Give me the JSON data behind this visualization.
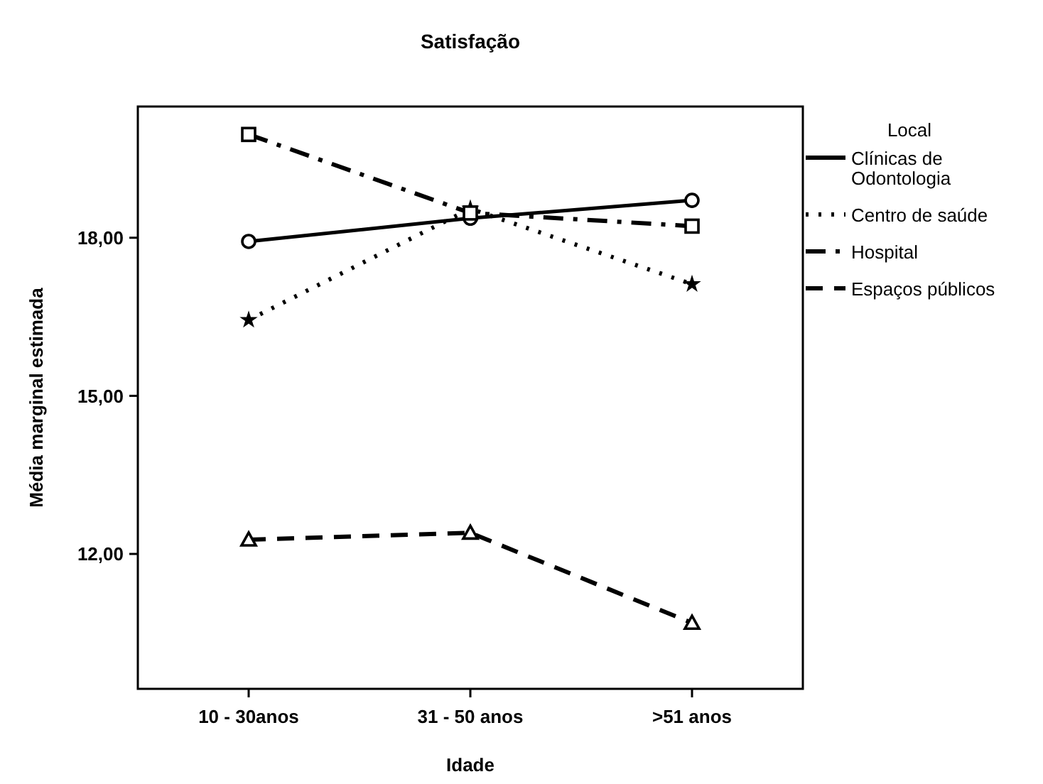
{
  "chart_data": {
    "type": "line",
    "title": "Satisfação",
    "xlabel": "Idade",
    "ylabel": "Média marginal estimada",
    "legend_title": "Local",
    "legend": "right",
    "grid": false,
    "categories": [
      "10 - 30anos",
      "31 - 50 anos",
      ">51 anos"
    ],
    "ylim": [
      9.44,
      20.49
    ],
    "yticks": [
      {
        "value": 12,
        "label": "12,00"
      },
      {
        "value": 15,
        "label": "15,00"
      },
      {
        "value": 18,
        "label": "18,00"
      }
    ],
    "series": [
      {
        "name": "Clínicas de Odontologia",
        "color": "#000000",
        "values": [
          17.93,
          18.37,
          18.71
        ],
        "marker": "circle",
        "line_style": "solid"
      },
      {
        "name": "Centro de saúde",
        "color": "#000000",
        "values": [
          16.44,
          18.55,
          17.12
        ],
        "marker": "star",
        "line_style": "dotted"
      },
      {
        "name": "Hospital",
        "color": "#000000",
        "values": [
          19.96,
          18.47,
          18.22
        ],
        "marker": "square",
        "line_style": "dashdot"
      },
      {
        "name": "Espaços públicos",
        "color": "#000000",
        "values": [
          12.27,
          12.4,
          10.69
        ],
        "marker": "triangle",
        "line_style": "dashed"
      }
    ]
  }
}
